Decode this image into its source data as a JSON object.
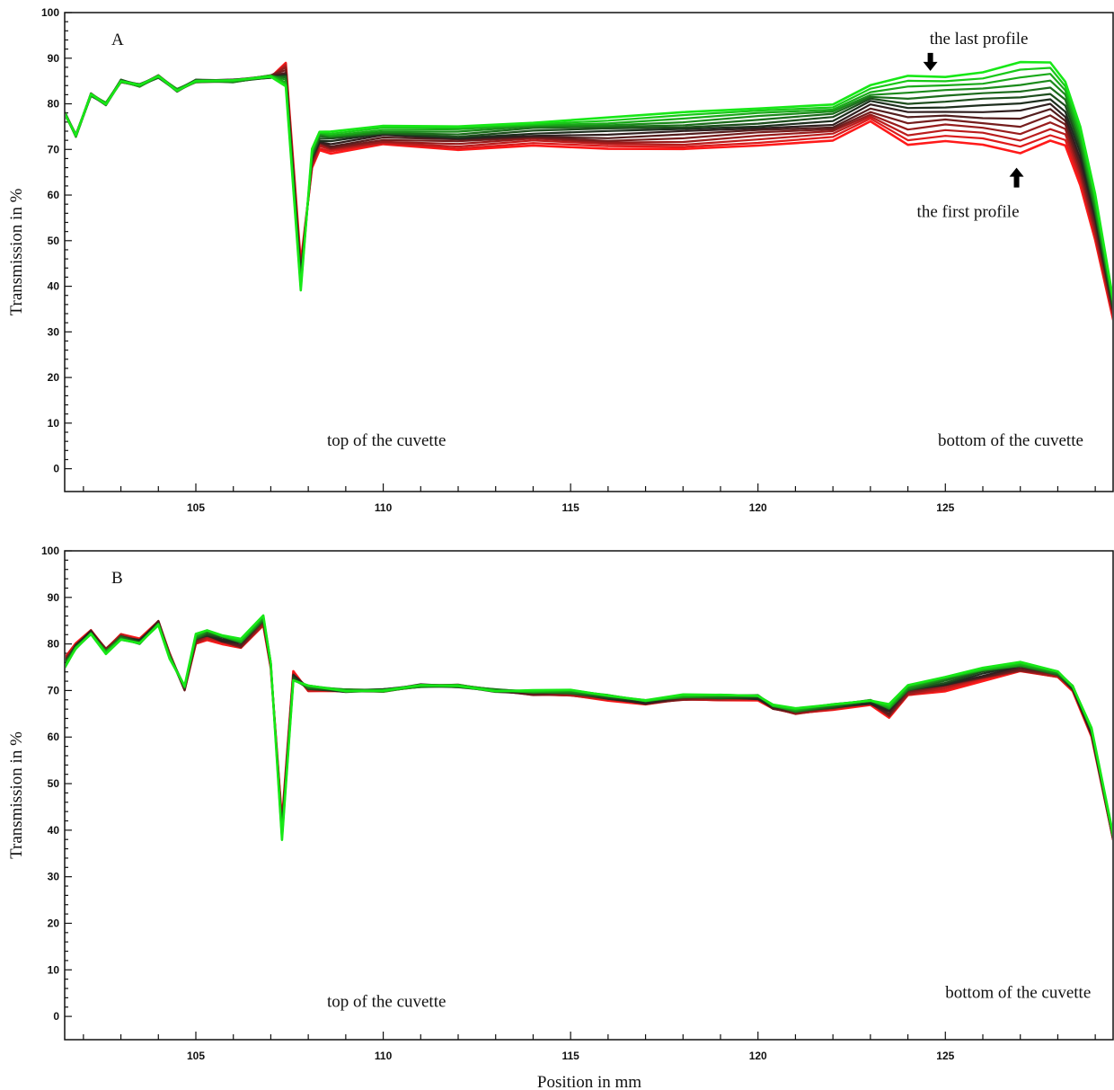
{
  "chart_data": [
    {
      "type": "line",
      "panel_label": "A",
      "xlim": [
        101.5,
        129.5
      ],
      "ylim": [
        -5,
        100
      ],
      "x_ticks": [
        105,
        110,
        115,
        120,
        125
      ],
      "y_ticks": [
        0,
        10,
        20,
        30,
        40,
        50,
        60,
        70,
        80,
        90,
        100
      ],
      "ylabel": "Transmission in %",
      "xlabel": "",
      "grid": false,
      "profile_count": 14,
      "profile_colors": [
        "#ff1a1a",
        "#1f1f1f",
        "#17e817"
      ],
      "first_profile": {
        "x": [
          101.5,
          101.8,
          102.2,
          102.6,
          103.0,
          103.5,
          104.0,
          104.5,
          105.0,
          106.0,
          107.0,
          107.4,
          107.8,
          108.1,
          108.3,
          108.6,
          110.0,
          112.0,
          114.0,
          116.0,
          118.0,
          120.0,
          122.0,
          123.0,
          124.0,
          125.0,
          126.0,
          127.0,
          127.8,
          128.2,
          128.6,
          129.0,
          129.5
        ],
        "y": [
          78,
          73,
          82,
          80,
          85,
          84,
          86,
          83,
          85,
          85,
          86,
          89,
          45,
          66,
          70,
          69,
          71,
          70,
          71,
          70,
          70,
          71,
          72,
          76,
          71,
          72,
          71,
          69,
          72,
          71,
          62,
          50,
          32
        ]
      },
      "last_profile": {
        "x": [
          101.5,
          101.8,
          102.2,
          102.6,
          103.0,
          103.5,
          104.0,
          104.5,
          105.0,
          106.0,
          107.0,
          107.4,
          107.8,
          108.1,
          108.3,
          108.6,
          110.0,
          112.0,
          114.0,
          116.0,
          118.0,
          120.0,
          122.0,
          123.0,
          124.0,
          125.0,
          126.0,
          127.0,
          127.8,
          128.2,
          128.6,
          129.0,
          129.5
        ],
        "y": [
          78,
          73,
          82,
          80,
          85,
          84,
          86,
          83,
          85,
          85,
          86,
          84,
          39,
          70,
          74,
          74,
          75,
          75,
          76,
          77,
          78,
          79,
          80,
          84,
          86,
          86,
          87,
          89,
          89,
          85,
          75,
          60,
          36
        ]
      },
      "annotations": [
        {
          "text": "the last profile",
          "arrow": "down",
          "x": 124.6,
          "y": 88
        },
        {
          "text": "the first profile",
          "arrow": "up",
          "x": 126.9,
          "y": 66
        },
        {
          "text": "top of the cuvette",
          "x": 108.5,
          "y": 5
        },
        {
          "text": "bottom of the cuvette",
          "x": 124.8,
          "y": 5
        }
      ]
    },
    {
      "type": "line",
      "panel_label": "B",
      "xlim": [
        101.5,
        129.5
      ],
      "ylim": [
        -5,
        100
      ],
      "x_ticks": [
        105,
        110,
        115,
        120,
        125
      ],
      "y_ticks": [
        0,
        10,
        20,
        30,
        40,
        50,
        60,
        70,
        80,
        90,
        100
      ],
      "ylabel": "Transmission in %",
      "xlabel": "Position in mm",
      "grid": false,
      "profile_count": 14,
      "profile_colors": [
        "#ff1a1a",
        "#1f1f1f",
        "#17e817"
      ],
      "first_profile": {
        "x": [
          101.5,
          101.8,
          102.2,
          102.6,
          103.0,
          103.5,
          104.0,
          104.3,
          104.7,
          105.0,
          105.3,
          105.7,
          106.2,
          106.8,
          107.0,
          107.3,
          107.6,
          108.0,
          109.0,
          110.0,
          111.0,
          112.0,
          113.0,
          114.0,
          115.0,
          116.0,
          117.0,
          118.0,
          119.0,
          120.0,
          120.4,
          121.0,
          122.0,
          123.0,
          123.5,
          124.0,
          125.0,
          126.0,
          127.0,
          128.0,
          128.4,
          128.9,
          129.5
        ],
        "y": [
          77,
          80,
          83,
          79,
          82,
          81,
          85,
          78,
          70,
          80,
          81,
          80,
          79,
          84,
          75,
          42,
          74,
          70,
          70,
          70,
          71,
          71,
          70,
          69,
          69,
          68,
          67,
          68,
          68,
          68,
          66,
          65,
          66,
          67,
          64,
          69,
          70,
          72,
          74,
          73,
          70,
          60,
          37
        ]
      },
      "last_profile": {
        "x": [
          101.5,
          101.8,
          102.2,
          102.6,
          103.0,
          103.5,
          104.0,
          104.3,
          104.7,
          105.0,
          105.3,
          105.7,
          106.2,
          106.8,
          107.0,
          107.3,
          107.6,
          108.0,
          109.0,
          110.0,
          111.0,
          112.0,
          113.0,
          114.0,
          115.0,
          116.0,
          117.0,
          118.0,
          119.0,
          120.0,
          120.4,
          121.0,
          122.0,
          123.0,
          123.5,
          124.0,
          125.0,
          126.0,
          127.0,
          128.0,
          128.4,
          128.9,
          129.5
        ],
        "y": [
          75,
          79,
          82,
          78,
          81,
          80,
          84,
          77,
          71,
          82,
          83,
          82,
          81,
          86,
          76,
          38,
          72,
          71,
          70,
          70,
          71,
          71,
          70,
          70,
          70,
          69,
          68,
          69,
          69,
          69,
          67,
          66,
          67,
          68,
          67,
          71,
          73,
          75,
          76,
          74,
          71,
          62,
          38
        ]
      },
      "annotations": [
        {
          "text": "top of the cuvette",
          "x": 108.5,
          "y": 2
        },
        {
          "text": "bottom of the cuvette",
          "x": 125.0,
          "y": 4
        }
      ]
    }
  ]
}
